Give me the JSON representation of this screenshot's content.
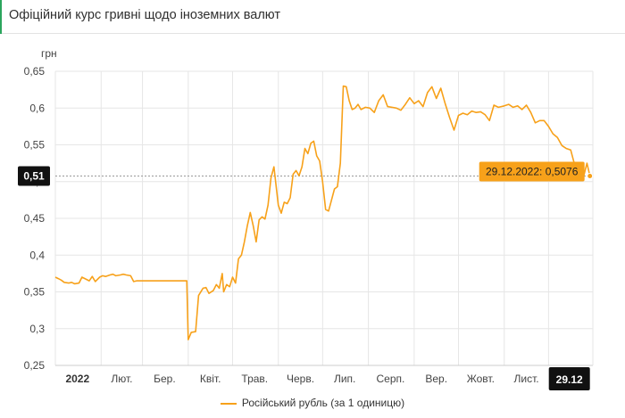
{
  "header": {
    "title": "Офіційний курс гривні щодо іноземних валют"
  },
  "colors": {
    "line": "#f7a11a",
    "accent": "#2ba55d",
    "grid": "#e6e6e6",
    "tooltip_bg": "#f7a11a",
    "dark_label": "#111111"
  },
  "chart_data": {
    "type": "line",
    "title": "",
    "ylabel": "грн",
    "xlabel": "",
    "ylim": [
      0.25,
      0.65
    ],
    "y_ticks": [
      "0,25",
      "0,3",
      "0,35",
      "0,4",
      "0,45",
      "0,5",
      "0,55",
      "0,6",
      "0,65"
    ],
    "x_ticks": [
      "2022",
      "Лют.",
      "Бер.",
      "Квіт.",
      "Трав.",
      "Черв.",
      "Лип.",
      "Серп.",
      "Вер.",
      "Жовт.",
      "Лист.",
      "29.12"
    ],
    "x_domain": [
      "2022-01-01",
      "2022-12-31"
    ],
    "grid": true,
    "legend_position": "bottom",
    "crosshair_y_label": "0,51",
    "crosshair_x_label": "29.12",
    "tooltip": "29.12.2022: 0,5076",
    "series": [
      {
        "name": "Російський рубль (за 1 одиницю)",
        "points": [
          [
            "2022-01-01",
            0.37
          ],
          [
            "2022-01-03",
            0.368
          ],
          [
            "2022-01-05",
            0.366
          ],
          [
            "2022-01-07",
            0.363
          ],
          [
            "2022-01-10",
            0.362
          ],
          [
            "2022-01-12",
            0.363
          ],
          [
            "2022-01-14",
            0.361
          ],
          [
            "2022-01-17",
            0.362
          ],
          [
            "2022-01-19",
            0.37
          ],
          [
            "2022-01-21",
            0.368
          ],
          [
            "2022-01-24",
            0.365
          ],
          [
            "2022-01-26",
            0.371
          ],
          [
            "2022-01-28",
            0.364
          ],
          [
            "2022-01-31",
            0.37
          ],
          [
            "2022-02-02",
            0.372
          ],
          [
            "2022-02-04",
            0.371
          ],
          [
            "2022-02-07",
            0.373
          ],
          [
            "2022-02-09",
            0.374
          ],
          [
            "2022-02-11",
            0.372
          ],
          [
            "2022-02-14",
            0.373
          ],
          [
            "2022-02-16",
            0.374
          ],
          [
            "2022-02-18",
            0.373
          ],
          [
            "2022-02-21",
            0.372
          ],
          [
            "2022-02-23",
            0.364
          ],
          [
            "2022-02-25",
            0.365
          ],
          [
            "2022-03-01",
            0.365
          ],
          [
            "2022-03-10",
            0.365
          ],
          [
            "2022-03-20",
            0.365
          ],
          [
            "2022-03-31",
            0.365
          ],
          [
            "2022-04-01",
            0.285
          ],
          [
            "2022-04-03",
            0.295
          ],
          [
            "2022-04-06",
            0.296
          ],
          [
            "2022-04-08",
            0.345
          ],
          [
            "2022-04-11",
            0.355
          ],
          [
            "2022-04-13",
            0.356
          ],
          [
            "2022-04-15",
            0.348
          ],
          [
            "2022-04-18",
            0.352
          ],
          [
            "2022-04-20",
            0.36
          ],
          [
            "2022-04-22",
            0.355
          ],
          [
            "2022-04-24",
            0.375
          ],
          [
            "2022-04-25",
            0.35
          ],
          [
            "2022-04-27",
            0.36
          ],
          [
            "2022-04-29",
            0.357
          ],
          [
            "2022-05-01",
            0.37
          ],
          [
            "2022-05-03",
            0.362
          ],
          [
            "2022-05-05",
            0.395
          ],
          [
            "2022-05-07",
            0.4
          ],
          [
            "2022-05-09",
            0.418
          ],
          [
            "2022-05-11",
            0.44
          ],
          [
            "2022-05-13",
            0.458
          ],
          [
            "2022-05-15",
            0.44
          ],
          [
            "2022-05-17",
            0.418
          ],
          [
            "2022-05-19",
            0.448
          ],
          [
            "2022-05-21",
            0.452
          ],
          [
            "2022-05-23",
            0.449
          ],
          [
            "2022-05-25",
            0.468
          ],
          [
            "2022-05-27",
            0.505
          ],
          [
            "2022-05-29",
            0.52
          ],
          [
            "2022-06-01",
            0.468
          ],
          [
            "2022-06-03",
            0.457
          ],
          [
            "2022-06-05",
            0.472
          ],
          [
            "2022-06-07",
            0.47
          ],
          [
            "2022-06-09",
            0.478
          ],
          [
            "2022-06-11",
            0.51
          ],
          [
            "2022-06-13",
            0.515
          ],
          [
            "2022-06-15",
            0.508
          ],
          [
            "2022-06-17",
            0.52
          ],
          [
            "2022-06-19",
            0.545
          ],
          [
            "2022-06-21",
            0.538
          ],
          [
            "2022-06-23",
            0.552
          ],
          [
            "2022-06-25",
            0.555
          ],
          [
            "2022-06-27",
            0.535
          ],
          [
            "2022-06-29",
            0.528
          ],
          [
            "2022-07-01",
            0.5
          ],
          [
            "2022-07-03",
            0.462
          ],
          [
            "2022-07-05",
            0.46
          ],
          [
            "2022-07-07",
            0.475
          ],
          [
            "2022-07-09",
            0.49
          ],
          [
            "2022-07-11",
            0.493
          ],
          [
            "2022-07-13",
            0.525
          ],
          [
            "2022-07-15",
            0.63
          ],
          [
            "2022-07-17",
            0.629
          ],
          [
            "2022-07-19",
            0.61
          ],
          [
            "2022-07-21",
            0.598
          ],
          [
            "2022-07-23",
            0.6
          ],
          [
            "2022-07-25",
            0.605
          ],
          [
            "2022-07-27",
            0.598
          ],
          [
            "2022-07-30",
            0.601
          ],
          [
            "2022-08-02",
            0.6
          ],
          [
            "2022-08-05",
            0.594
          ],
          [
            "2022-08-08",
            0.61
          ],
          [
            "2022-08-11",
            0.618
          ],
          [
            "2022-08-14",
            0.602
          ],
          [
            "2022-08-17",
            0.601
          ],
          [
            "2022-08-20",
            0.6
          ],
          [
            "2022-08-23",
            0.597
          ],
          [
            "2022-08-26",
            0.605
          ],
          [
            "2022-08-29",
            0.614
          ],
          [
            "2022-09-01",
            0.606
          ],
          [
            "2022-09-04",
            0.61
          ],
          [
            "2022-09-07",
            0.602
          ],
          [
            "2022-09-10",
            0.621
          ],
          [
            "2022-09-13",
            0.629
          ],
          [
            "2022-09-16",
            0.613
          ],
          [
            "2022-09-19",
            0.627
          ],
          [
            "2022-09-22",
            0.606
          ],
          [
            "2022-09-25",
            0.587
          ],
          [
            "2022-09-28",
            0.57
          ],
          [
            "2022-10-01",
            0.59
          ],
          [
            "2022-10-04",
            0.593
          ],
          [
            "2022-10-07",
            0.591
          ],
          [
            "2022-10-10",
            0.596
          ],
          [
            "2022-10-13",
            0.594
          ],
          [
            "2022-10-16",
            0.595
          ],
          [
            "2022-10-19",
            0.591
          ],
          [
            "2022-10-22",
            0.583
          ],
          [
            "2022-10-25",
            0.604
          ],
          [
            "2022-10-28",
            0.601
          ],
          [
            "2022-11-01",
            0.603
          ],
          [
            "2022-11-04",
            0.605
          ],
          [
            "2022-11-07",
            0.601
          ],
          [
            "2022-11-10",
            0.603
          ],
          [
            "2022-11-13",
            0.598
          ],
          [
            "2022-11-16",
            0.604
          ],
          [
            "2022-11-19",
            0.594
          ],
          [
            "2022-11-22",
            0.58
          ],
          [
            "2022-11-25",
            0.583
          ],
          [
            "2022-11-28",
            0.583
          ],
          [
            "2022-12-01",
            0.575
          ],
          [
            "2022-12-04",
            0.565
          ],
          [
            "2022-12-07",
            0.56
          ],
          [
            "2022-12-10",
            0.549
          ],
          [
            "2022-12-13",
            0.545
          ],
          [
            "2022-12-16",
            0.543
          ],
          [
            "2022-12-19",
            0.52
          ],
          [
            "2022-12-22",
            0.506
          ],
          [
            "2022-12-25",
            0.509
          ],
          [
            "2022-12-27",
            0.525
          ],
          [
            "2022-12-29",
            0.5076
          ]
        ]
      }
    ]
  }
}
